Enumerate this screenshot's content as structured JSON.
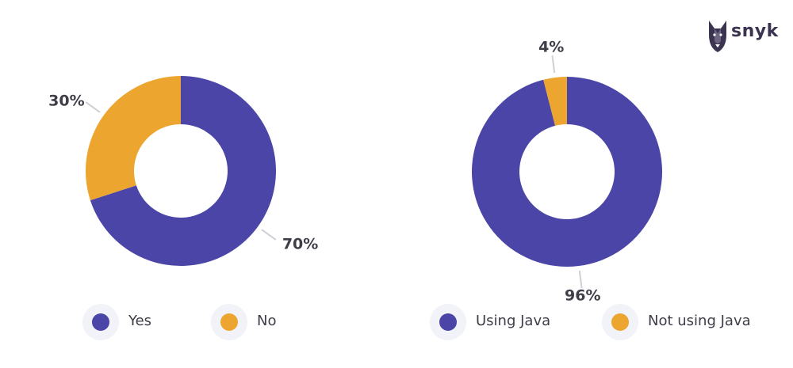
{
  "brand": {
    "name": "snyk"
  },
  "colors": {
    "primary": "#4a45a6",
    "secondary": "#eca62f"
  },
  "chart_data": [
    {
      "type": "pie",
      "style": "donut",
      "labels": [
        "Yes",
        "No"
      ],
      "values": [
        70,
        30
      ],
      "data_labels": [
        "70%",
        "30%"
      ],
      "colors": [
        "#4a45a6",
        "#eca62f"
      ],
      "legend": {
        "position": "bottom",
        "entries": [
          "Yes",
          "No"
        ]
      }
    },
    {
      "type": "pie",
      "style": "donut",
      "labels": [
        "Using Java",
        "Not using Java"
      ],
      "values": [
        96,
        4
      ],
      "data_labels": [
        "96%",
        "4%"
      ],
      "colors": [
        "#4a45a6",
        "#eca62f"
      ],
      "legend": {
        "position": "bottom",
        "entries": [
          "Using Java",
          "Not using Java"
        ]
      }
    }
  ]
}
